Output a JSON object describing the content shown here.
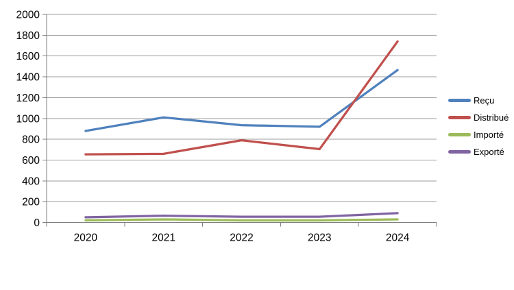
{
  "chart_data": {
    "type": "line",
    "title": "",
    "xlabel": "",
    "ylabel": "",
    "categories": [
      "2020",
      "2021",
      "2022",
      "2023",
      "2024"
    ],
    "series": [
      {
        "name": "Reçu",
        "color": "#4F81BD",
        "values": [
          880,
          1010,
          935,
          920,
          1465
        ]
      },
      {
        "name": "Distribué",
        "color": "#C0504D",
        "values": [
          655,
          660,
          790,
          705,
          1740
        ]
      },
      {
        "name": "Importé",
        "color": "#9BBB59",
        "values": [
          20,
          30,
          20,
          20,
          30
        ]
      },
      {
        "name": "Exporté",
        "color": "#8064A2",
        "values": [
          50,
          65,
          55,
          55,
          90
        ]
      }
    ],
    "ylim": [
      0,
      2000
    ],
    "y_tick_step": 200,
    "y_ticks": [
      "2000",
      "1800",
      "1600",
      "1400",
      "1200",
      "1000",
      "800",
      "600",
      "400",
      "200",
      "0"
    ],
    "grid": "horizontal",
    "legend_position": "right",
    "colors": {
      "gridline": "#9C9C9C",
      "axis": "#7F7F7F",
      "text": "#000000",
      "background": "#FFFFFF"
    }
  }
}
